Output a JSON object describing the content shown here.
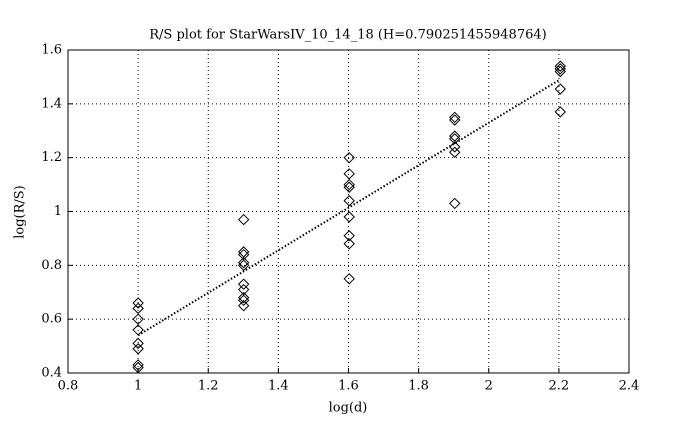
{
  "chart_data": {
    "type": "scatter",
    "title": "R/S plot for StarWarsIV_10_14_18 (H=0.790251455948764)",
    "x_label": "log(d)",
    "y_label": "log(R/S)",
    "xlim": [
      0.8,
      2.4
    ],
    "xticks": [
      0.8,
      1,
      1.2,
      1.4,
      1.6,
      1.8,
      2,
      2.2,
      2.4
    ],
    "ylim": [
      0.4,
      1.6
    ],
    "yticks": [
      0.4,
      0.6,
      0.8,
      1,
      1.2,
      1.4,
      1.6
    ],
    "grid": true,
    "series": [
      {
        "marker": "diamond",
        "color": "#000000",
        "x": [
          1,
          1,
          1,
          1,
          1,
          1,
          1,
          1,
          1.301,
          1.301,
          1.301,
          1.301,
          1.301,
          1.301,
          1.301,
          1.301,
          1.301,
          1.301,
          1.602,
          1.602,
          1.602,
          1.602,
          1.602,
          1.602,
          1.602,
          1.602,
          1.602,
          1.903,
          1.903,
          1.903,
          1.903,
          1.903,
          1.903,
          1.903,
          2.204,
          2.204,
          2.204,
          2.204,
          2.204
        ],
        "values": [
          0.66,
          0.64,
          0.6,
          0.56,
          0.51,
          0.49,
          0.43,
          0.42,
          0.97,
          0.85,
          0.84,
          0.81,
          0.8,
          0.73,
          0.71,
          0.68,
          0.67,
          0.65,
          1.2,
          1.14,
          1.1,
          1.09,
          1.04,
          0.98,
          0.91,
          0.88,
          0.75,
          1.35,
          1.34,
          1.28,
          1.27,
          1.24,
          1.22,
          1.03,
          1.54,
          1.53,
          1.52,
          1.455,
          1.37
        ]
      },
      {
        "marker": "none",
        "line": "dotted",
        "color": "#000000",
        "x": [
          1,
          2.204
        ],
        "values": [
          0.54,
          1.491
        ]
      }
    ]
  }
}
